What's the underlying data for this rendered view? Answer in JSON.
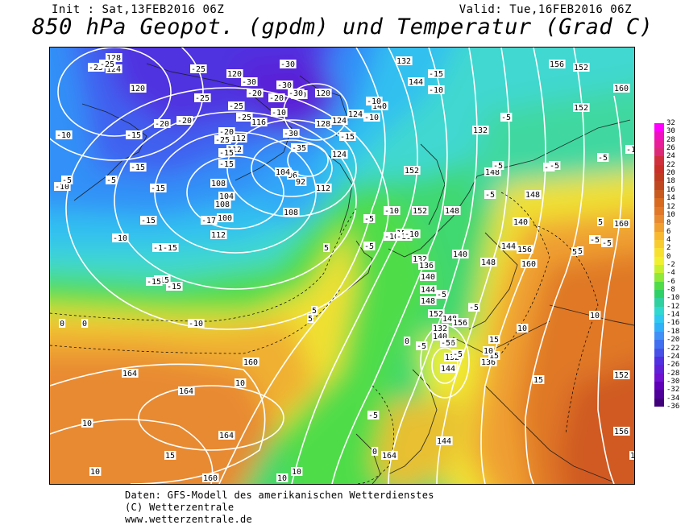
{
  "header": {
    "init": "Init : Sat,13FEB2016 06Z",
    "valid": "Valid: Tue,16FEB2016 06Z",
    "title": "850 hPa Geopot. (gpdm) und Temperatur (Grad C)"
  },
  "footer": {
    "line1": "Daten: GFS-Modell des amerikanischen Wetterdienstes",
    "line2": "(C) Wetterzentrale",
    "line3": "www.wetterzentrale.de"
  },
  "legend": {
    "ticks": [
      "32",
      "30",
      "28",
      "26",
      "24",
      "22",
      "20",
      "18",
      "16",
      "14",
      "12",
      "10",
      "8",
      "6",
      "4",
      "2",
      "0",
      "-2",
      "-4",
      "-6",
      "-8",
      "-10",
      "-12",
      "-14",
      "-16",
      "-18",
      "-20",
      "-22",
      "-24",
      "-26",
      "-28",
      "-30",
      "-32",
      "-34",
      "-36"
    ],
    "colors": [
      "#ff00ff",
      "#f010c0",
      "#e81e9a",
      "#dd2a78",
      "#d0303c",
      "#c83028",
      "#c03c20",
      "#c04820",
      "#c85a20",
      "#d86a20",
      "#e07828",
      "#e88a30",
      "#f0a030",
      "#f8b830",
      "#f8cc30",
      "#f8e030",
      "#f0f030",
      "#c8f030",
      "#90e838",
      "#50dc48",
      "#30d068",
      "#30d0a0",
      "#30d8d0",
      "#30c8f0",
      "#30b0f8",
      "#4090f8",
      "#4070f0",
      "#4850e8",
      "#5030e0",
      "#6020d8",
      "#7010d0",
      "#6000b8",
      "#50009a",
      "#40007a"
    ]
  },
  "map": {
    "geopotential_labels": [
      "128",
      "124",
      "120",
      "120",
      "120",
      "124",
      "128",
      "124",
      "116",
      "112",
      "112",
      "108",
      "104",
      "108",
      "100",
      "96",
      "104",
      "92",
      "108",
      "112",
      "112",
      "124",
      "132",
      "144",
      "140",
      "132",
      "152",
      "148",
      "148",
      "152",
      "156",
      "132",
      "136",
      "140",
      "144",
      "148",
      "152",
      "148",
      "156",
      "140",
      "136",
      "132",
      "144",
      "164",
      "160",
      "164",
      "164",
      "160",
      "164",
      "152",
      "160",
      "152",
      "144",
      "140",
      "148",
      "156",
      "136",
      "132",
      "144",
      "140",
      "148",
      "152",
      "160",
      "156",
      "160",
      "152"
    ],
    "temperature_labels": [
      "-25",
      "-25",
      "-25",
      "-30",
      "-30",
      "-30",
      "-25",
      "-20",
      "-20",
      "-25",
      "-30",
      "-20",
      "-25",
      "-30",
      "-35",
      "-25",
      "-20",
      "-10",
      "-15",
      "-15",
      "-15",
      "-20",
      "-20",
      "-10",
      "-15",
      "-15",
      "-10",
      "-10",
      "-5",
      "-5",
      "-15",
      "-15",
      "-17",
      "-15",
      "-10",
      "-15",
      "-15",
      "-15",
      "-10",
      "-5",
      "-10",
      "-10",
      "-10",
      "-5",
      "-15",
      "-15",
      "-10",
      "-10",
      "-10",
      "-5",
      "-5",
      "-5",
      "-5",
      "-5",
      "-5",
      "-5",
      "-10",
      "-5",
      "-5",
      "-5",
      "-5",
      "-5",
      "0",
      "0",
      "0",
      "5",
      "5",
      "5",
      "5",
      "5",
      "5",
      "10",
      "10",
      "10",
      "10",
      "10",
      "10",
      "15",
      "15",
      "15",
      "15",
      "15",
      "10",
      "0",
      "10",
      "0",
      "-5",
      "-5",
      "-5"
    ]
  }
}
